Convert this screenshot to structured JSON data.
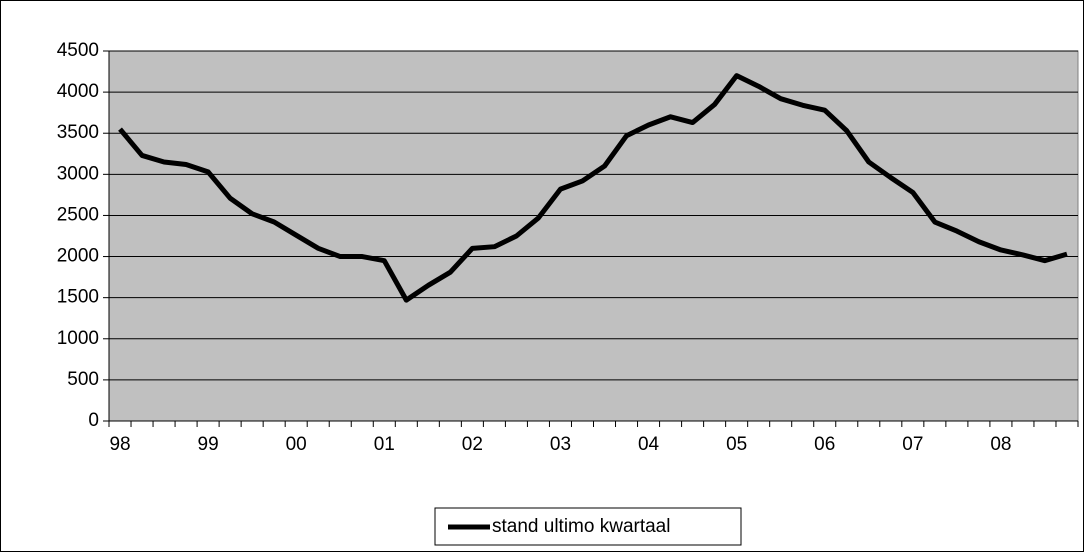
{
  "chart_data": {
    "type": "line",
    "categories": [
      "98",
      null,
      null,
      null,
      "99",
      null,
      null,
      null,
      "00",
      null,
      null,
      null,
      "01",
      null,
      null,
      null,
      "02",
      null,
      null,
      null,
      "03",
      null,
      null,
      null,
      "04",
      null,
      null,
      null,
      "05",
      null,
      null,
      null,
      "06",
      null,
      null,
      null,
      "07",
      null,
      null,
      null,
      "08",
      null,
      null,
      null
    ],
    "series": [
      {
        "name": "stand ultimo kwartaal",
        "color": "#000000",
        "values": [
          3550,
          3230,
          3150,
          3120,
          3030,
          2710,
          2520,
          2420,
          2260,
          2100,
          2000,
          2000,
          1950,
          1470,
          1650,
          1810,
          2100,
          2120,
          2250,
          2470,
          2820,
          2920,
          3100,
          3470,
          3600,
          3700,
          3630,
          3850,
          4200,
          4070,
          3920,
          3840,
          3780,
          3530,
          3150,
          2960,
          2780,
          2420,
          2310,
          2180,
          2080,
          2020,
          1950,
          2030
        ]
      }
    ],
    "ylim": [
      0,
      4500
    ],
    "yticks": [
      0,
      500,
      1000,
      1500,
      2000,
      2500,
      3000,
      3500,
      4000,
      4500
    ],
    "grid": true,
    "background": "#c0c0c0",
    "legend": "bottom"
  }
}
